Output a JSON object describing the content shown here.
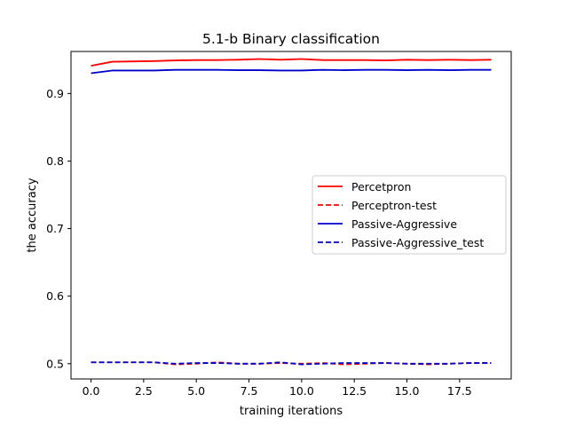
{
  "chart_data": {
    "type": "line",
    "title": "5.1-b Binary classification",
    "xlabel": "training iterations",
    "ylabel": "the accuracy",
    "xlim": [
      -0.95,
      19.95
    ],
    "ylim": [
      0.4774,
      0.9622
    ],
    "xticks": [
      0,
      2.5,
      5,
      7.5,
      10,
      12.5,
      15,
      17.5
    ],
    "xtick_labels": [
      "0.0",
      "2.5",
      "5.0",
      "7.5",
      "10.0",
      "12.5",
      "15.0",
      "17.5"
    ],
    "yticks": [
      0.5,
      0.6,
      0.7,
      0.8,
      0.9
    ],
    "ytick_labels": [
      "0.5",
      "0.6",
      "0.7",
      "0.8",
      "0.9"
    ],
    "grid": false,
    "legend_position": "center-right",
    "x": [
      0,
      1,
      2,
      3,
      4,
      5,
      6,
      7,
      8,
      9,
      10,
      11,
      12,
      13,
      14,
      15,
      16,
      17,
      18,
      19
    ],
    "series": [
      {
        "name": "Percetpron",
        "color": "#ff0000",
        "style": "solid",
        "values": [
          0.941,
          0.947,
          0.9475,
          0.948,
          0.949,
          0.9495,
          0.9495,
          0.95,
          0.951,
          0.95,
          0.951,
          0.9495,
          0.9495,
          0.9495,
          0.949,
          0.95,
          0.9495,
          0.95,
          0.9495,
          0.95
        ]
      },
      {
        "name": "Perceptron-test",
        "color": "#ff0000",
        "style": "dashed",
        "values": [
          0.502,
          0.502,
          0.502,
          0.502,
          0.499,
          0.5,
          0.502,
          0.5,
          0.5,
          0.501,
          0.5,
          0.501,
          0.499,
          0.5,
          0.501,
          0.5,
          0.499,
          0.5,
          0.501,
          0.501
        ]
      },
      {
        "name": "Passive-Aggressive",
        "color": "#0000cc",
        "style": "solid",
        "values": [
          0.93,
          0.934,
          0.934,
          0.934,
          0.935,
          0.935,
          0.935,
          0.9345,
          0.9345,
          0.934,
          0.934,
          0.935,
          0.9345,
          0.935,
          0.935,
          0.9345,
          0.935,
          0.9345,
          0.935,
          0.935
        ]
      },
      {
        "name": "Passive-Aggressive_test",
        "color": "#0000cc",
        "style": "dashed",
        "values": [
          0.502,
          0.502,
          0.502,
          0.502,
          0.5,
          0.501,
          0.501,
          0.5,
          0.5,
          0.502,
          0.499,
          0.5,
          0.501,
          0.501,
          0.501,
          0.5,
          0.5,
          0.5,
          0.501,
          0.501
        ]
      }
    ]
  }
}
